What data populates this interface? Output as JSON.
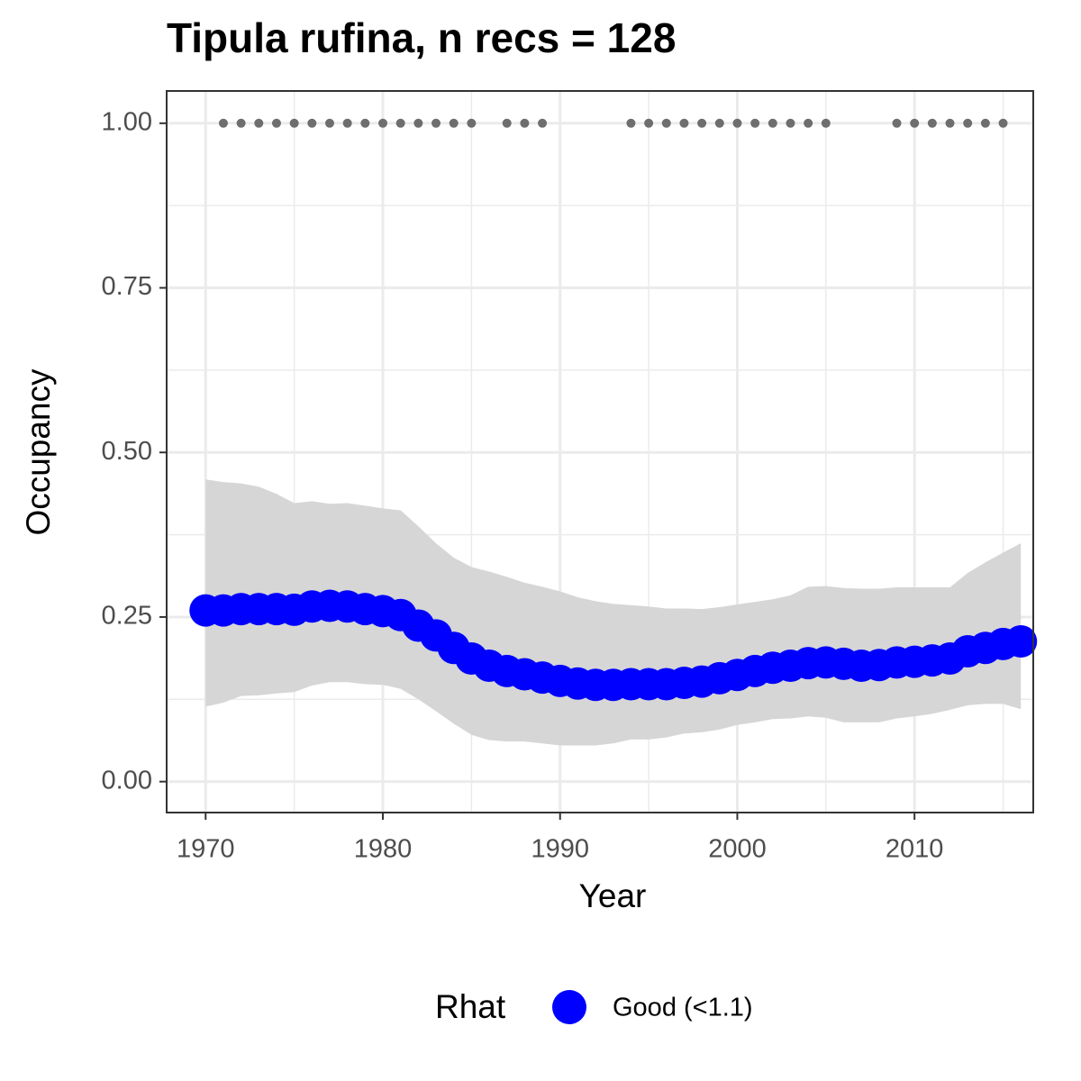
{
  "chart_data": {
    "type": "line",
    "title": "Tipula rufina, n recs = 128",
    "x_label": "Year",
    "y_label": "Occupancy",
    "x": [
      1970,
      1971,
      1972,
      1973,
      1974,
      1975,
      1976,
      1977,
      1978,
      1979,
      1980,
      1981,
      1982,
      1983,
      1984,
      1985,
      1986,
      1987,
      1988,
      1989,
      1990,
      1991,
      1992,
      1993,
      1994,
      1995,
      1996,
      1997,
      1998,
      1999,
      2000,
      2001,
      2002,
      2003,
      2004,
      2005,
      2006,
      2007,
      2008,
      2009,
      2010,
      2011,
      2012,
      2013,
      2014,
      2015,
      2016
    ],
    "series": [
      {
        "name": "Good (<1.1)",
        "color": "#0000ff",
        "values": [
          0.26,
          0.26,
          0.262,
          0.262,
          0.262,
          0.261,
          0.266,
          0.267,
          0.266,
          0.262,
          0.259,
          0.253,
          0.237,
          0.222,
          0.203,
          0.187,
          0.176,
          0.168,
          0.163,
          0.158,
          0.153,
          0.149,
          0.147,
          0.147,
          0.148,
          0.148,
          0.148,
          0.15,
          0.152,
          0.157,
          0.162,
          0.168,
          0.173,
          0.176,
          0.18,
          0.181,
          0.179,
          0.176,
          0.177,
          0.181,
          0.182,
          0.184,
          0.187,
          0.198,
          0.203,
          0.209,
          0.213
        ]
      }
    ],
    "band": {
      "color": "#d6d6d6",
      "upper": [
        0.459,
        0.455,
        0.453,
        0.448,
        0.437,
        0.423,
        0.426,
        0.422,
        0.423,
        0.419,
        0.415,
        0.412,
        0.388,
        0.362,
        0.34,
        0.326,
        0.319,
        0.311,
        0.302,
        0.296,
        0.289,
        0.28,
        0.274,
        0.27,
        0.268,
        0.266,
        0.263,
        0.263,
        0.262,
        0.265,
        0.269,
        0.273,
        0.277,
        0.283,
        0.296,
        0.297,
        0.294,
        0.293,
        0.293,
        0.295,
        0.295,
        0.295,
        0.295,
        0.317,
        0.333,
        0.348,
        0.362
      ],
      "lower": [
        0.114,
        0.12,
        0.13,
        0.131,
        0.134,
        0.136,
        0.146,
        0.151,
        0.151,
        0.148,
        0.147,
        0.141,
        0.125,
        0.107,
        0.088,
        0.071,
        0.063,
        0.061,
        0.061,
        0.058,
        0.055,
        0.055,
        0.055,
        0.058,
        0.064,
        0.064,
        0.067,
        0.073,
        0.075,
        0.079,
        0.086,
        0.09,
        0.095,
        0.096,
        0.099,
        0.097,
        0.09,
        0.09,
        0.09,
        0.096,
        0.099,
        0.103,
        0.109,
        0.116,
        0.118,
        0.118,
        0.11
      ]
    },
    "detections": {
      "color": "#6e6e6e",
      "x": [
        1971,
        1972,
        1973,
        1974,
        1975,
        1976,
        1977,
        1978,
        1979,
        1980,
        1981,
        1982,
        1983,
        1984,
        1985,
        1987,
        1988,
        1989,
        1994,
        1995,
        1996,
        1997,
        1998,
        1999,
        2000,
        2001,
        2002,
        2003,
        2004,
        2005,
        2009,
        2010,
        2011,
        2012,
        2013,
        2014,
        2015
      ],
      "values": [
        1,
        1,
        1,
        1,
        1,
        1,
        1,
        1,
        1,
        1,
        1,
        1,
        1,
        1,
        1,
        1,
        1,
        1,
        1,
        1,
        1,
        1,
        1,
        1,
        1,
        1,
        1,
        1,
        1,
        1,
        1,
        1,
        1,
        1,
        1,
        1,
        1
      ]
    },
    "xlim": [
      1967.8,
      2016.7
    ],
    "ylim": [
      -0.047,
      1.049
    ],
    "xticks": [
      1970,
      1980,
      1990,
      2000,
      2010
    ],
    "yticks": [
      {
        "value": 0,
        "label": "0.00"
      },
      {
        "value": 0.25,
        "label": "0.25"
      },
      {
        "value": 0.5,
        "label": "0.50"
      },
      {
        "value": 0.75,
        "label": "0.75"
      },
      {
        "value": 1,
        "label": "1.00"
      }
    ],
    "x_minor_grid": [
      1975,
      1985,
      1995,
      2005,
      2015
    ],
    "y_minor_grid": [
      0.125,
      0.375,
      0.625,
      0.875
    ],
    "grid": true,
    "legend_title": "Rhat",
    "legend_position": "bottom"
  }
}
